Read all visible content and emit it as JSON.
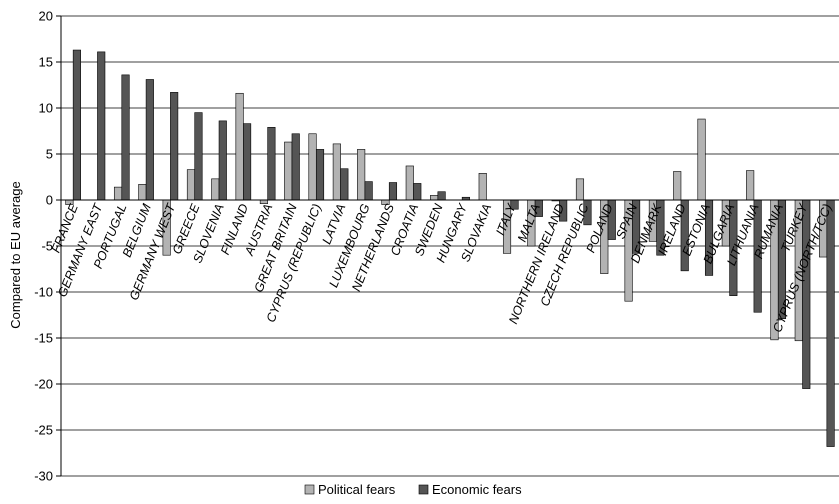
{
  "chart_data": {
    "type": "bar",
    "title": "",
    "xlabel": "",
    "ylabel": "Compared to EU average",
    "ylim": [
      -30,
      20
    ],
    "yticks": [
      20,
      15,
      10,
      5,
      0,
      -5,
      -10,
      -15,
      -20,
      -25,
      -30
    ],
    "grid": true,
    "legend_position": "bottom",
    "categories": [
      "FRANCE",
      "GERMANY EAST",
      "PORTUGAL",
      "BELGIUM",
      "GERMANY WEST",
      "GREECE",
      "SLOVENIA",
      "FINLAND",
      "AUSTRIA",
      "GREAT BRITAIN",
      "CYPRUS (REPUBLIC)",
      "LATVIA",
      "LUXEMBOURG",
      "NETHERLANDS",
      "CROATIA",
      "SWEDEN",
      "HUNGARY",
      "SLOVAKIA",
      "ITALY",
      "MALTA",
      "NORTHERN IRELAND",
      "CZECH REPUBLIC",
      "POLAND",
      "SPAIN",
      "DENMARK",
      "IRELAND",
      "ESTONIA",
      "BULGARIA",
      "LITHUANIA",
      "RUMANIA",
      "TURKEY",
      "CYPRUS (NORTH/TCC)"
    ],
    "series": [
      {
        "name": "Political fears",
        "color": "#b3b3b3",
        "values": [
          -0.5,
          0,
          1.4,
          1.7,
          -6,
          3.3,
          2.3,
          11.6,
          -0.4,
          6.3,
          7.2,
          6.1,
          5.5,
          -0.5,
          3.7,
          0.5,
          0,
          2.9,
          -5.8,
          -5,
          -0.1,
          2.3,
          -8,
          -11,
          -4.5,
          3.1,
          8.8,
          -5,
          3.2,
          -15.2,
          -15.3,
          -6.2
        ]
      },
      {
        "name": "Economic fears",
        "color": "#555555",
        "values": [
          16.3,
          16.1,
          13.6,
          13.1,
          11.7,
          9.5,
          8.6,
          8.3,
          7.9,
          7.2,
          5.5,
          3.4,
          2,
          1.9,
          1.8,
          0.9,
          0.3,
          0,
          -1,
          -1.8,
          -2.3,
          -2.7,
          -4.3,
          -5.8,
          -6,
          -7.7,
          -8.2,
          -10.4,
          -12.2,
          -12.9,
          -20.5,
          -26.8
        ]
      }
    ]
  }
}
